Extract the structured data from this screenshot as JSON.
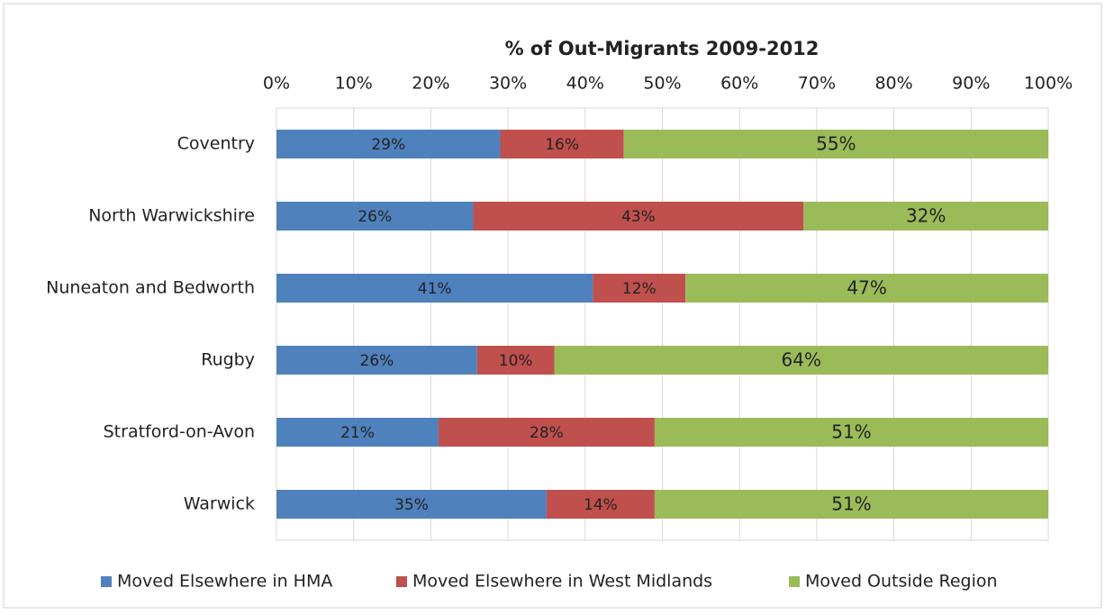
{
  "chart_data": {
    "type": "stacked-bar-horizontal",
    "title": "% of Out-Migrants 2009-2012",
    "categories": [
      "Coventry",
      "North Warwickshire",
      "Nuneaton and Bedworth",
      "Rugby",
      "Stratford-on-Avon",
      "Warwick"
    ],
    "series": [
      {
        "name": "Moved Elsewhere in HMA",
        "color": "#4f81bd",
        "values": [
          29,
          25.5,
          41,
          26,
          21,
          35
        ],
        "value_labels": [
          "29%",
          "26%",
          "41%",
          "26%",
          "21%",
          "35%"
        ]
      },
      {
        "name": "Moved Elsewhere in West Midlands",
        "color": "#c0504d",
        "values": [
          16,
          42.8,
          12,
          10,
          28,
          14
        ],
        "value_labels": [
          "16%",
          "43%",
          "12%",
          "10%",
          "28%",
          "14%"
        ]
      },
      {
        "name": "Moved Outside Region",
        "color": "#9bbb59",
        "values": [
          55,
          31.7,
          47,
          64,
          51,
          51
        ],
        "value_labels": [
          "55%",
          "32%",
          "47%",
          "64%",
          "51%",
          "51%"
        ]
      }
    ],
    "xlim": [
      0,
      100
    ],
    "xticks": [
      {
        "value": 0,
        "label": "0%"
      },
      {
        "value": 10,
        "label": "10%"
      },
      {
        "value": 20,
        "label": "20%"
      },
      {
        "value": 30,
        "label": "30%"
      },
      {
        "value": 40,
        "label": "40%"
      },
      {
        "value": 50,
        "label": "50%"
      },
      {
        "value": 60,
        "label": "60%"
      },
      {
        "value": 70,
        "label": "70%"
      },
      {
        "value": 80,
        "label": "80%"
      },
      {
        "value": 90,
        "label": "90%"
      },
      {
        "value": 100,
        "label": "100%"
      }
    ],
    "grid": true,
    "legend": "bottom"
  }
}
